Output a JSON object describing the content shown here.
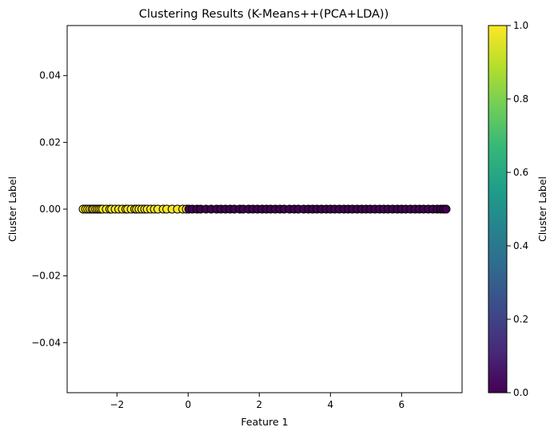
{
  "chart_data": {
    "type": "scatter",
    "title": "Clustering Results (K-Means++(PCA+LDA))",
    "xlabel": "Feature 1",
    "ylabel": "Cluster Label",
    "xlim": [
      -3.4,
      7.7
    ],
    "ylim": [
      -0.055,
      0.055
    ],
    "xticks": [
      -2,
      0,
      2,
      4,
      6
    ],
    "xtick_labels": [
      "−2",
      "0",
      "2",
      "4",
      "6"
    ],
    "yticks": [
      -0.04,
      -0.02,
      0.0,
      0.02,
      0.04
    ],
    "ytick_labels": [
      "−0.04",
      "−0.02",
      "0.00",
      "0.02",
      "0.04"
    ],
    "grid": false,
    "point_edge_color": "#000000",
    "colorbar": {
      "label": "Cluster Label",
      "colormap": "viridis",
      "range": [
        0,
        1
      ],
      "ticks": [
        0.0,
        0.2,
        0.4,
        0.6,
        0.8,
        1.0
      ],
      "tick_labels": [
        "0.0",
        "0.2",
        "0.4",
        "0.6",
        "0.8",
        "1.0"
      ],
      "colors": [
        "#440154",
        "#482878",
        "#3e4989",
        "#31688e",
        "#26828e",
        "#1f9e89",
        "#35b779",
        "#6ece58",
        "#b5de2b",
        "#fde725"
      ]
    },
    "series": [
      {
        "cluster": 1,
        "color": "#fde725",
        "x": [
          -2.95,
          -2.88,
          -2.82,
          -2.76,
          -2.7,
          -2.66,
          -2.6,
          -2.55,
          -2.5,
          -2.45,
          -2.4,
          -2.3,
          -2.2,
          -2.15,
          -2.05,
          -1.95,
          -1.85,
          -1.75,
          -1.7,
          -1.6,
          -1.5,
          -1.45,
          -1.38,
          -1.3,
          -1.22,
          -1.15,
          -1.05,
          -0.95,
          -0.85,
          -0.7,
          -0.6,
          -0.45,
          -0.3,
          -0.15,
          -0.05
        ],
        "y": [
          0,
          0,
          0,
          0,
          0,
          0,
          0,
          0,
          0,
          0,
          0,
          0,
          0,
          0,
          0,
          0,
          0,
          0,
          0,
          0,
          0,
          0,
          0,
          0,
          0,
          0,
          0,
          0,
          0,
          0,
          0,
          0,
          0,
          0,
          0
        ]
      },
      {
        "cluster": 0,
        "color": "#440154",
        "x": [
          0.02,
          0.12,
          0.25,
          0.35,
          0.5,
          0.65,
          0.8,
          0.92,
          1.05,
          1.18,
          1.3,
          1.45,
          1.55,
          1.7,
          1.82,
          1.95,
          2.08,
          2.2,
          2.32,
          2.45,
          2.58,
          2.7,
          2.85,
          2.98,
          3.1,
          3.25,
          3.38,
          3.5,
          3.62,
          3.75,
          3.88,
          4.0,
          4.12,
          4.25,
          4.38,
          4.5,
          4.62,
          4.75,
          4.88,
          5.0,
          5.12,
          5.25,
          5.38,
          5.5,
          5.62,
          5.75,
          5.88,
          6.0,
          6.12,
          6.25,
          6.38,
          6.5,
          6.62,
          6.75,
          6.88,
          7.0,
          7.1,
          7.18,
          7.25
        ],
        "y": [
          0,
          0,
          0,
          0,
          0,
          0,
          0,
          0,
          0,
          0,
          0,
          0,
          0,
          0,
          0,
          0,
          0,
          0,
          0,
          0,
          0,
          0,
          0,
          0,
          0,
          0,
          0,
          0,
          0,
          0,
          0,
          0,
          0,
          0,
          0,
          0,
          0,
          0,
          0,
          0,
          0,
          0,
          0,
          0,
          0,
          0,
          0,
          0,
          0,
          0,
          0,
          0,
          0,
          0,
          0,
          0,
          0,
          0,
          0
        ]
      }
    ]
  }
}
